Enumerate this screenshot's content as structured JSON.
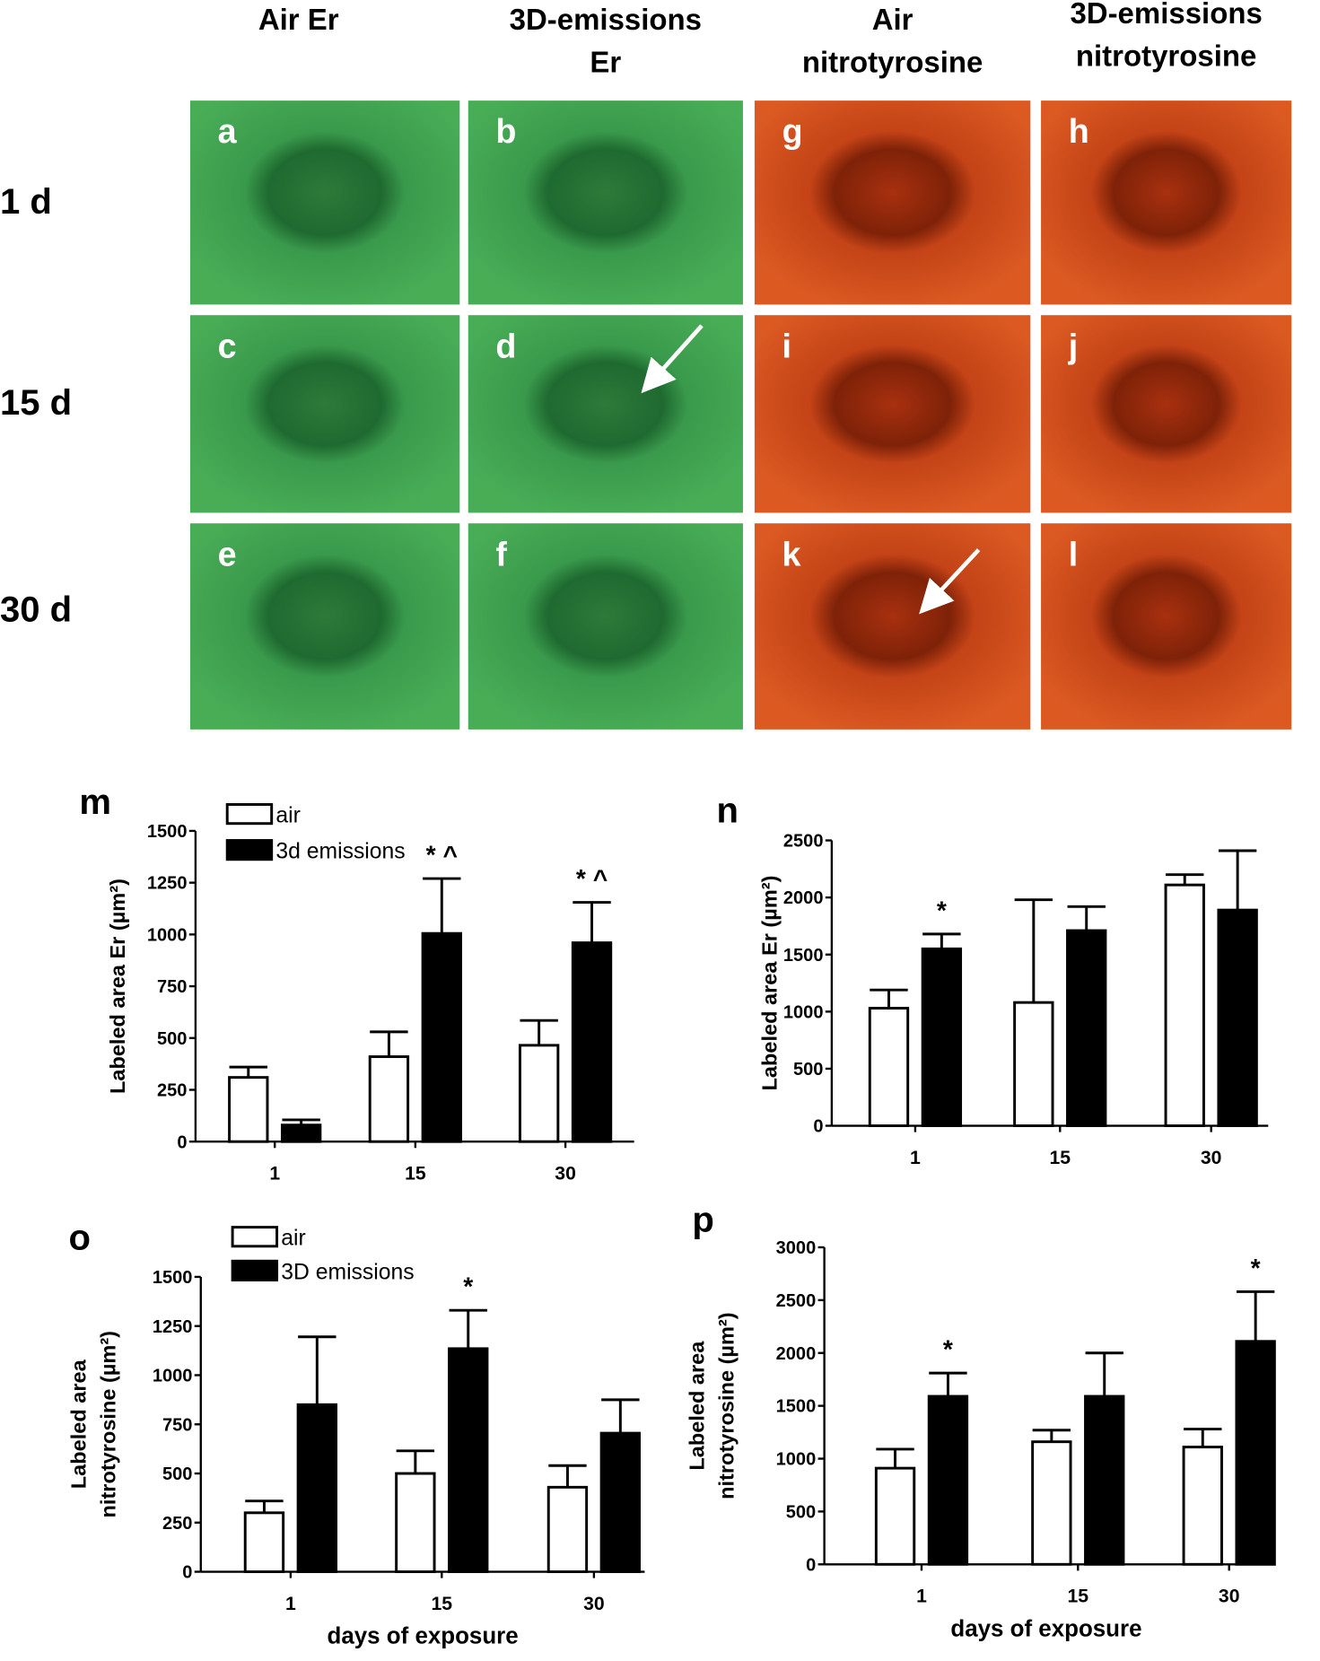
{
  "figure": {
    "column_headers": [
      [
        "Air Er"
      ],
      [
        "3D-emissions",
        "Er"
      ],
      [
        "Air",
        "nitrotyrosine"
      ],
      [
        "3D-emissions",
        "nitrotyrosine"
      ]
    ],
    "row_labels": [
      "1 d",
      "15 d",
      "30 d"
    ],
    "panel_letters": [
      [
        "a",
        "b",
        "g",
        "h"
      ],
      [
        "c",
        "d",
        "i",
        "j"
      ],
      [
        "e",
        "f",
        "k",
        "l"
      ]
    ]
  },
  "chart_data": [
    {
      "type": "bar",
      "panel_label": "m",
      "y_label": [
        "Labeled area Er (µm²)"
      ],
      "categories": [
        "1",
        "15",
        "30"
      ],
      "series": [
        {
          "name": "air",
          "color": "#ffffff",
          "values": [
            310,
            410,
            465
          ],
          "errors": [
            50,
            120,
            120
          ]
        },
        {
          "name": "3d emissions",
          "color": "#000000",
          "values": [
            80,
            1005,
            960
          ],
          "errors": [
            25,
            265,
            195
          ],
          "value_labels": [
            null,
            "* ^",
            "* ^"
          ]
        }
      ],
      "ylim": [
        0,
        1500
      ],
      "yticks": [
        0,
        250,
        500,
        750,
        1000,
        1250,
        1500
      ],
      "legend": true
    },
    {
      "type": "bar",
      "panel_label": "n",
      "y_label": [
        "Labeled area Er (µm²)"
      ],
      "categories": [
        "1",
        "15",
        "30"
      ],
      "series": [
        {
          "color": "#ffffff",
          "values": [
            1030,
            1080,
            2110
          ],
          "errors": [
            160,
            900,
            90
          ]
        },
        {
          "color": "#000000",
          "values": [
            1550,
            1710,
            1890
          ],
          "errors": [
            130,
            210,
            520
          ],
          "value_labels": [
            "*",
            null,
            null
          ]
        }
      ],
      "ylim": [
        0,
        2500
      ],
      "yticks": [
        0,
        500,
        1000,
        1500,
        2000,
        2500
      ],
      "legend": false
    },
    {
      "type": "bar",
      "panel_label": "o",
      "y_label": [
        "Labeled area",
        "nitrotyrosine (µm²)"
      ],
      "x_label": "days of exposure",
      "categories": [
        "1",
        "15",
        "30"
      ],
      "series": [
        {
          "name": "air",
          "color": "#ffffff",
          "values": [
            300,
            500,
            430
          ],
          "errors": [
            60,
            115,
            110
          ]
        },
        {
          "name": "3D emissions",
          "color": "#000000",
          "values": [
            850,
            1135,
            705
          ],
          "errors": [
            345,
            195,
            170
          ],
          "value_labels": [
            null,
            "*",
            null
          ]
        }
      ],
      "ylim": [
        0,
        1500
      ],
      "yticks": [
        0,
        250,
        500,
        750,
        1000,
        1250,
        1500
      ],
      "legend": true
    },
    {
      "type": "bar",
      "panel_label": "p",
      "y_label": [
        "Labeled area",
        "nitrotyrosine (µm²)"
      ],
      "x_label": "days of exposure",
      "categories": [
        "1",
        "15",
        "30"
      ],
      "series": [
        {
          "color": "#ffffff",
          "values": [
            910,
            1160,
            1110
          ],
          "errors": [
            180,
            110,
            170
          ]
        },
        {
          "color": "#000000",
          "values": [
            1590,
            1590,
            2110
          ],
          "errors": [
            220,
            410,
            470
          ],
          "value_labels": [
            "*",
            null,
            "*"
          ]
        }
      ],
      "ylim": [
        0,
        3000
      ],
      "yticks": [
        0,
        500,
        1000,
        1500,
        2000,
        2500,
        3000
      ],
      "legend": false
    }
  ]
}
